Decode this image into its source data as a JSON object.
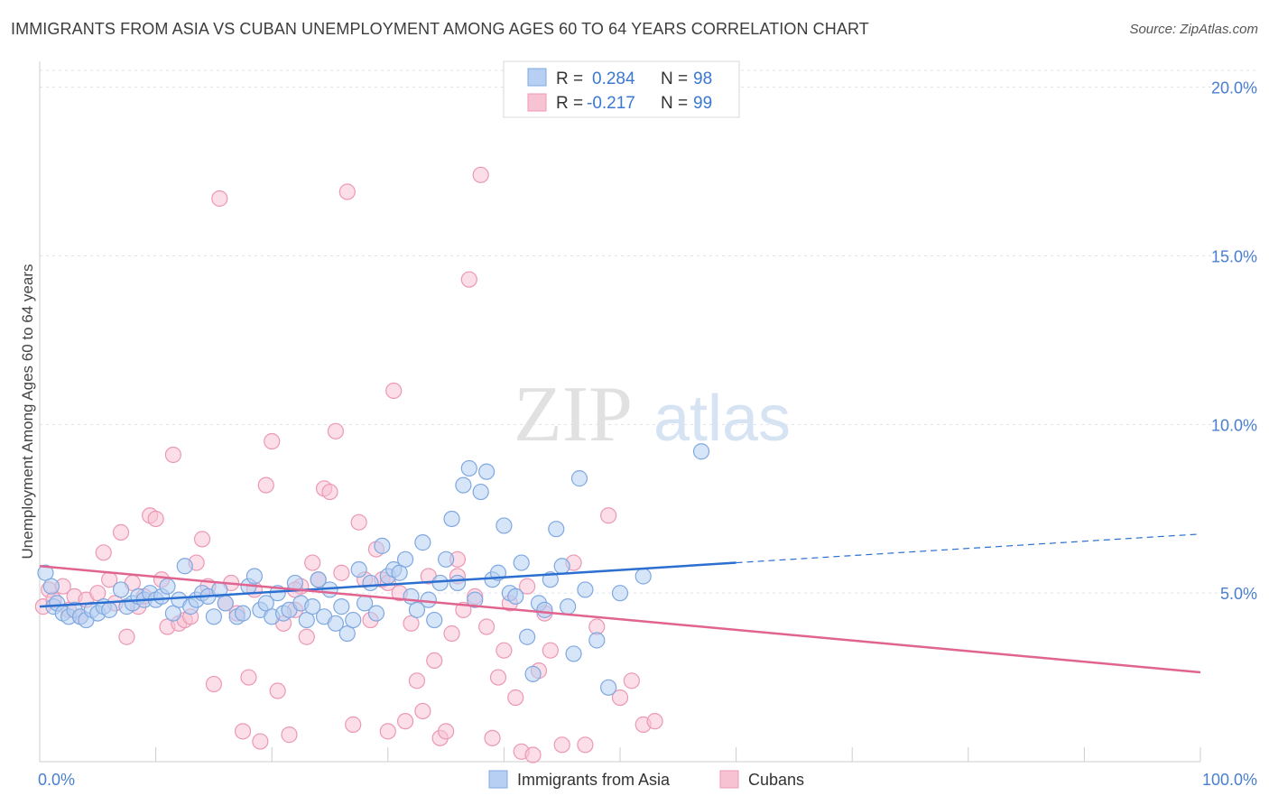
{
  "title": "IMMIGRANTS FROM ASIA VS CUBAN UNEMPLOYMENT AMONG AGES 60 TO 64 YEARS CORRELATION CHART",
  "source": "Source: ZipAtlas.com",
  "watermark": {
    "zip": "ZIP",
    "atlas": "atlas"
  },
  "colors": {
    "blue_fill": "#b7cff2",
    "blue_stroke": "#7fa8e0",
    "blue_line": "#2b6fd0",
    "pink_fill": "#f7c3d3",
    "pink_stroke": "#ec98b4",
    "pink_line": "#e0648f",
    "tick_text": "#4a7fd0",
    "grid": "#dde3ea"
  },
  "legend": {
    "rows": [
      {
        "r_label": "R =",
        "r_value": "0.284",
        "n_label": "N =",
        "n_value": "98"
      },
      {
        "r_label": "R =",
        "r_value": "-0.217",
        "n_label": "N =",
        "n_value": "99"
      }
    ]
  },
  "chart_data": {
    "type": "scatter",
    "title": "IMMIGRANTS FROM ASIA VS CUBAN UNEMPLOYMENT AMONG AGES 60 TO 64 YEARS CORRELATION CHART",
    "xlabel": "",
    "ylabel": "Unemployment Among Ages 60 to 64 years",
    "xlim": [
      0,
      100
    ],
    "ylim": [
      0,
      20.5
    ],
    "x_tick_labels": [
      "0.0%",
      "100.0%"
    ],
    "y_ticks": [
      5,
      10,
      15,
      20
    ],
    "y_tick_labels": [
      "5.0%",
      "10.0%",
      "15.0%",
      "20.0%"
    ],
    "legend_position": "top-center",
    "series": [
      {
        "name": "Immigrants from Asia",
        "r": 0.284,
        "n": 98,
        "trend": {
          "x0": 0,
          "y0": 4.6,
          "x1": 60,
          "y1": 5.9,
          "dash_x1": 100,
          "dash_y1": 6.75
        },
        "points": [
          [
            0.5,
            5.6
          ],
          [
            1,
            5.2
          ],
          [
            1.2,
            4.6
          ],
          [
            1.5,
            4.7
          ],
          [
            2,
            4.4
          ],
          [
            2.5,
            4.3
          ],
          [
            3,
            4.5
          ],
          [
            3.5,
            4.3
          ],
          [
            4,
            4.2
          ],
          [
            4.5,
            4.5
          ],
          [
            5,
            4.4
          ],
          [
            5.5,
            4.6
          ],
          [
            6,
            4.5
          ],
          [
            7,
            5.1
          ],
          [
            7.5,
            4.6
          ],
          [
            8,
            4.7
          ],
          [
            8.5,
            4.9
          ],
          [
            9,
            4.8
          ],
          [
            9.5,
            5.0
          ],
          [
            10,
            4.8
          ],
          [
            10.5,
            4.9
          ],
          [
            11,
            5.2
          ],
          [
            11.5,
            4.4
          ],
          [
            12,
            4.8
          ],
          [
            12.5,
            5.8
          ],
          [
            13,
            4.6
          ],
          [
            13.5,
            4.8
          ],
          [
            14,
            5.0
          ],
          [
            14.5,
            4.9
          ],
          [
            15,
            4.3
          ],
          [
            15.5,
            5.1
          ],
          [
            16,
            4.7
          ],
          [
            17,
            4.3
          ],
          [
            17.5,
            4.4
          ],
          [
            18,
            5.2
          ],
          [
            18.5,
            5.5
          ],
          [
            19,
            4.5
          ],
          [
            19.5,
            4.7
          ],
          [
            20,
            4.3
          ],
          [
            20.5,
            5.0
          ],
          [
            21,
            4.4
          ],
          [
            21.5,
            4.5
          ],
          [
            22,
            5.3
          ],
          [
            22.5,
            4.7
          ],
          [
            23,
            4.2
          ],
          [
            23.5,
            4.6
          ],
          [
            24,
            5.4
          ],
          [
            24.5,
            4.3
          ],
          [
            25,
            5.1
          ],
          [
            25.5,
            4.1
          ],
          [
            26,
            4.6
          ],
          [
            26.5,
            3.8
          ],
          [
            27,
            4.2
          ],
          [
            27.5,
            5.7
          ],
          [
            28,
            4.7
          ],
          [
            28.5,
            5.3
          ],
          [
            29,
            4.4
          ],
          [
            29.5,
            6.4
          ],
          [
            30,
            5.5
          ],
          [
            30.5,
            5.7
          ],
          [
            31,
            5.6
          ],
          [
            31.5,
            6.0
          ],
          [
            32,
            4.9
          ],
          [
            32.5,
            4.5
          ],
          [
            33,
            6.5
          ],
          [
            33.5,
            4.8
          ],
          [
            34,
            4.2
          ],
          [
            34.5,
            5.3
          ],
          [
            35,
            6.0
          ],
          [
            35.5,
            7.2
          ],
          [
            36,
            5.3
          ],
          [
            36.5,
            8.2
          ],
          [
            37,
            8.7
          ],
          [
            37.5,
            4.8
          ],
          [
            38,
            8.0
          ],
          [
            38.5,
            8.6
          ],
          [
            39,
            5.4
          ],
          [
            39.5,
            5.6
          ],
          [
            40,
            7.0
          ],
          [
            40.5,
            5.0
          ],
          [
            41,
            4.9
          ],
          [
            41.5,
            5.9
          ],
          [
            42,
            3.7
          ],
          [
            42.5,
            2.6
          ],
          [
            43,
            4.7
          ],
          [
            43.5,
            4.5
          ],
          [
            44,
            5.4
          ],
          [
            44.5,
            6.9
          ],
          [
            45,
            5.8
          ],
          [
            45.5,
            4.6
          ],
          [
            46,
            3.2
          ],
          [
            46.5,
            8.4
          ],
          [
            47,
            5.1
          ],
          [
            48,
            3.6
          ],
          [
            49,
            2.2
          ],
          [
            50,
            5.0
          ],
          [
            52,
            5.5
          ],
          [
            57,
            9.2
          ]
        ]
      },
      {
        "name": "Cubans",
        "r": -0.217,
        "n": 99,
        "trend": {
          "x0": 0,
          "y0": 5.8,
          "x1": 100,
          "y1": 2.65
        },
        "points": [
          [
            0.3,
            4.6
          ],
          [
            0.8,
            5.1
          ],
          [
            1.2,
            4.8
          ],
          [
            2,
            5.2
          ],
          [
            2.5,
            4.5
          ],
          [
            3,
            4.9
          ],
          [
            3.5,
            4.3
          ],
          [
            4,
            4.8
          ],
          [
            5,
            5.0
          ],
          [
            5.5,
            6.2
          ],
          [
            6,
            5.4
          ],
          [
            6.5,
            4.7
          ],
          [
            7,
            6.8
          ],
          [
            7.5,
            3.7
          ],
          [
            8,
            5.3
          ],
          [
            8.5,
            4.6
          ],
          [
            9,
            4.9
          ],
          [
            9.5,
            7.3
          ],
          [
            10,
            7.2
          ],
          [
            10.5,
            5.4
          ],
          [
            11,
            4.0
          ],
          [
            11.5,
            9.1
          ],
          [
            12,
            4.1
          ],
          [
            12.5,
            4.2
          ],
          [
            13,
            4.3
          ],
          [
            13.5,
            5.9
          ],
          [
            14,
            6.6
          ],
          [
            14.5,
            5.2
          ],
          [
            15,
            2.3
          ],
          [
            15.5,
            16.7
          ],
          [
            16,
            4.7
          ],
          [
            16.5,
            5.3
          ],
          [
            17,
            4.4
          ],
          [
            17.5,
            0.9
          ],
          [
            18,
            2.5
          ],
          [
            18.5,
            5.1
          ],
          [
            19,
            0.6
          ],
          [
            19.5,
            8.2
          ],
          [
            20,
            9.5
          ],
          [
            20.5,
            2.1
          ],
          [
            21,
            4.1
          ],
          [
            21.5,
            0.8
          ],
          [
            22,
            4.5
          ],
          [
            22.5,
            5.2
          ],
          [
            23,
            3.7
          ],
          [
            23.5,
            5.9
          ],
          [
            24,
            5.4
          ],
          [
            24.5,
            8.1
          ],
          [
            25,
            8.0
          ],
          [
            25.5,
            9.8
          ],
          [
            26,
            5.6
          ],
          [
            26.5,
            16.9
          ],
          [
            27,
            1.1
          ],
          [
            27.5,
            7.1
          ],
          [
            28,
            5.4
          ],
          [
            28.5,
            4.2
          ],
          [
            29,
            6.3
          ],
          [
            29.5,
            5.4
          ],
          [
            30,
            0.9
          ],
          [
            30.5,
            11.0
          ],
          [
            31,
            5.0
          ],
          [
            31.5,
            1.2
          ],
          [
            32,
            4.1
          ],
          [
            32.5,
            2.4
          ],
          [
            33,
            1.5
          ],
          [
            33.5,
            5.5
          ],
          [
            34,
            3.0
          ],
          [
            34.5,
            0.7
          ],
          [
            35,
            0.9
          ],
          [
            35.5,
            3.8
          ],
          [
            36,
            6.0
          ],
          [
            36.5,
            4.5
          ],
          [
            37,
            14.3
          ],
          [
            37.5,
            4.9
          ],
          [
            38,
            17.4
          ],
          [
            38.5,
            4.0
          ],
          [
            39,
            0.7
          ],
          [
            39.5,
            2.5
          ],
          [
            40,
            3.3
          ],
          [
            40.5,
            4.7
          ],
          [
            41,
            1.9
          ],
          [
            41.5,
            0.3
          ],
          [
            42,
            5.2
          ],
          [
            42.5,
            0.2
          ],
          [
            43,
            2.7
          ],
          [
            43.5,
            4.4
          ],
          [
            44,
            3.3
          ],
          [
            45,
            0.5
          ],
          [
            46,
            5.9
          ],
          [
            47,
            0.5
          ],
          [
            48,
            4.0
          ],
          [
            49,
            7.3
          ],
          [
            50,
            1.9
          ],
          [
            51,
            2.4
          ],
          [
            52,
            1.1
          ],
          [
            53,
            1.2
          ],
          [
            36,
            5.5
          ],
          [
            30,
            5.3
          ],
          [
            22,
            5.1
          ]
        ]
      }
    ]
  }
}
